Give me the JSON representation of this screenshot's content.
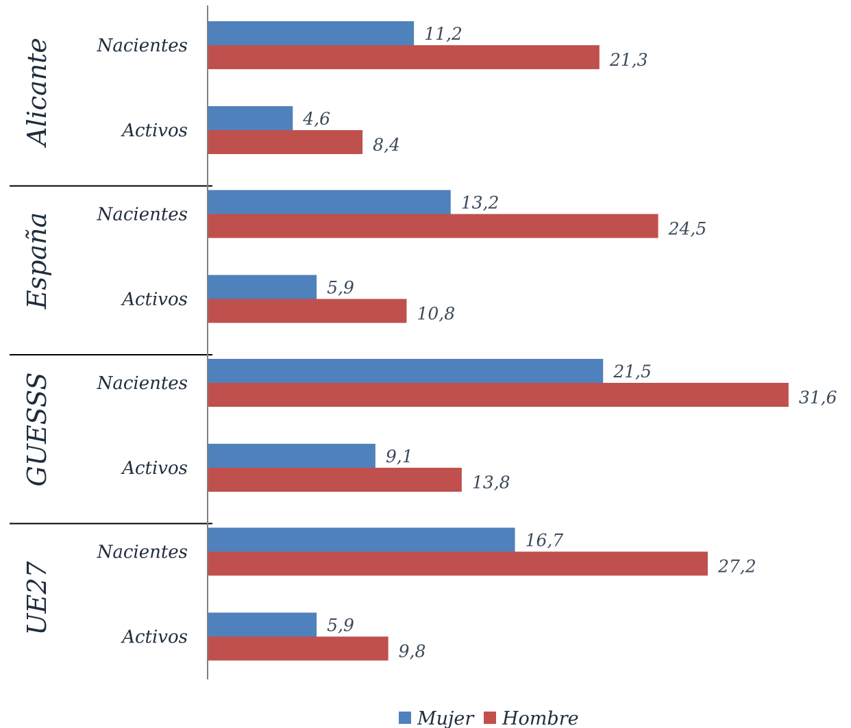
{
  "chart_data": {
    "type": "bar",
    "orientation": "horizontal",
    "title": "",
    "xlabel": "",
    "ylabel": "",
    "xlim": [
      0,
      32
    ],
    "grid": false,
    "legend_position": "bottom",
    "colors": {
      "Mujer": "#4f81bd",
      "Hombre": "#c0504d"
    },
    "groups": [
      {
        "name": "Alicante",
        "categories": [
          {
            "label": "Nacientes",
            "values": {
              "Mujer": 11.2,
              "Hombre": 21.3
            },
            "labels": {
              "Mujer": "11,2",
              "Hombre": "21,3"
            }
          },
          {
            "label": "Activos",
            "values": {
              "Mujer": 4.6,
              "Hombre": 8.4
            },
            "labels": {
              "Mujer": "4,6",
              "Hombre": "8,4"
            }
          }
        ]
      },
      {
        "name": "España",
        "categories": [
          {
            "label": "Nacientes",
            "values": {
              "Mujer": 13.2,
              "Hombre": 24.5
            },
            "labels": {
              "Mujer": "13,2",
              "Hombre": "24,5"
            }
          },
          {
            "label": "Activos",
            "values": {
              "Mujer": 5.9,
              "Hombre": 10.8
            },
            "labels": {
              "Mujer": "5,9",
              "Hombre": "10,8"
            }
          }
        ]
      },
      {
        "name": "GUESSS",
        "categories": [
          {
            "label": "Nacientes",
            "values": {
              "Mujer": 21.5,
              "Hombre": 31.6
            },
            "labels": {
              "Mujer": "21,5",
              "Hombre": "31,6"
            }
          },
          {
            "label": "Activos",
            "values": {
              "Mujer": 9.1,
              "Hombre": 13.8
            },
            "labels": {
              "Mujer": "9,1",
              "Hombre": "13,8"
            }
          }
        ]
      },
      {
        "name": "UE27",
        "categories": [
          {
            "label": "Nacientes",
            "values": {
              "Mujer": 16.7,
              "Hombre": 27.2
            },
            "labels": {
              "Mujer": "16,7",
              "Hombre": "27,2"
            }
          },
          {
            "label": "Activos",
            "values": {
              "Mujer": 5.9,
              "Hombre": 9.8
            },
            "labels": {
              "Mujer": "5,9",
              "Hombre": "9,8"
            }
          }
        ]
      }
    ],
    "series": [
      {
        "name": "Mujer"
      },
      {
        "name": "Hombre"
      }
    ]
  }
}
